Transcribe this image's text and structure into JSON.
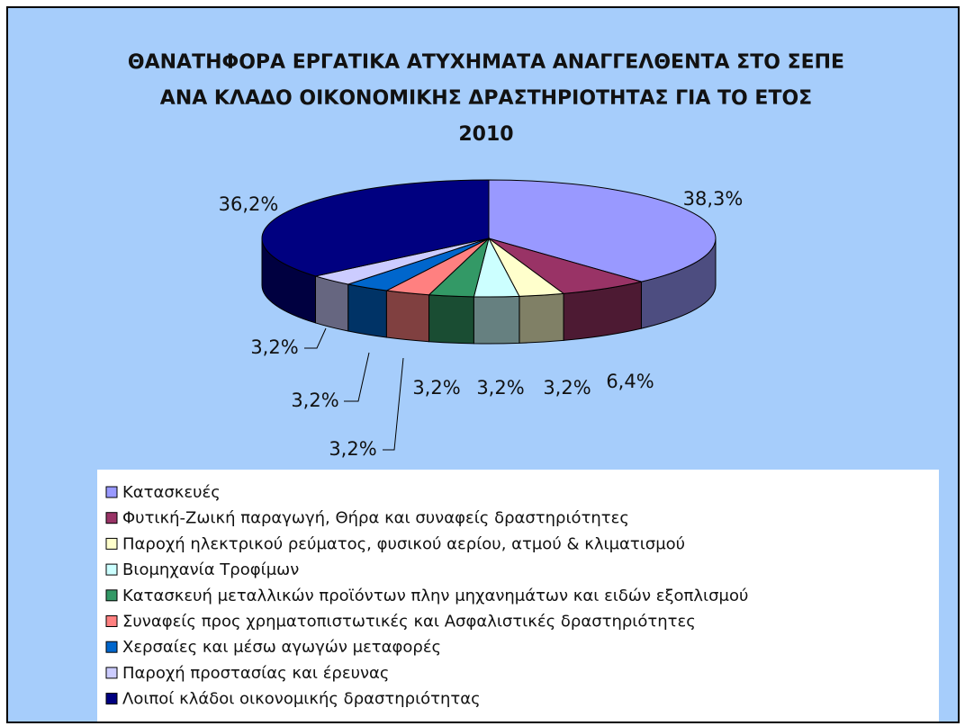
{
  "chart_data": {
    "type": "pie3d",
    "title": "ΘΑΝΑΤΗΦΟΡΑ ΕΡΓΑΤΙΚΑ ΑΤΥΧΗΜΑΤΑ ΑΝΑΓΓΕΛΘΕΝΤΑ ΣΤΟ ΣΕΠΕ ΑΝΑ ΚΛΑΔΟ ΟΙΚΟΝΟΜΙΚΗΣ ΔΡΑΣΤΗΡΙΟΤΗΤΑΣ ΓΙΑ ΤΟ ΕΤΟΣ 2010",
    "categories": [
      "Κατασκευές",
      "Φυτική-Ζωική παραγωγή, Θήρα και συναφείς δραστηριότητες",
      "Παροχή ηλεκτρικού ρεύματος, φυσικού αερίου, ατμού & κλιματισμού",
      "Βιομηχανία Τροφίμων",
      "Κατασκευή μεταλλικών προϊόντων πλην μηχανημάτων και ειδών εξοπλισμού",
      "Συναφείς προς χρηματοπιστωτικές και Ασφαλιστικές δραστηριότητες",
      "Χερσαίες και μέσω αγωγών μεταφορές",
      "Παροχή προστασίας και έρευνας",
      "Λοιποί κλάδοι οικονομικής δραστηριότητας"
    ],
    "values": [
      38.3,
      6.4,
      3.2,
      3.2,
      3.2,
      3.2,
      3.2,
      3.2,
      36.2
    ],
    "value_labels": [
      "38,3%",
      "6,4%",
      "3,2%",
      "3,2%",
      "3,2%",
      "3,2%",
      "3,2%",
      "3,2%",
      "36,2%"
    ],
    "colors": [
      "#9999ff",
      "#993366",
      "#ffffcc",
      "#ccffff",
      "#339966",
      "#ff8080",
      "#0066cc",
      "#ccccff",
      "#000080"
    ],
    "legend": "bottom"
  }
}
